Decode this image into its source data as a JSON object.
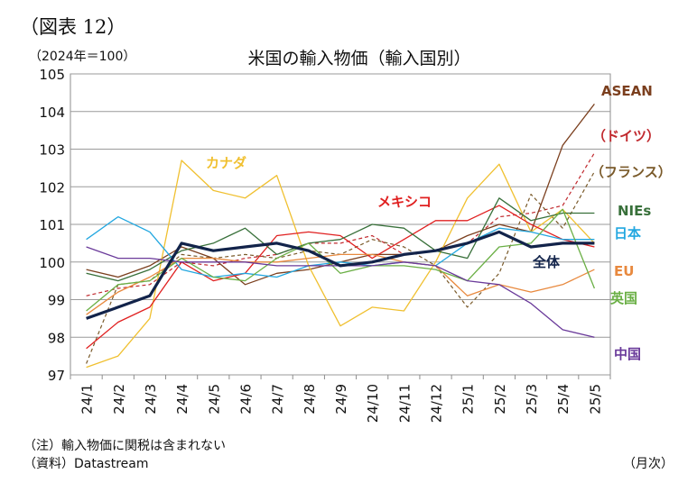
{
  "figure_no": "（図表 12）",
  "unit_label": "（2024年＝100）",
  "title": "米国の輸入物価（輸入国別）",
  "note": "（注）輸入物価に関税は含まれない",
  "source": "（資料）Datastream",
  "x_unit": "（月次）",
  "chart_data": {
    "type": "line",
    "title": "米国の輸入物価（輸入国別）",
    "ylabel": "（2024年＝100）",
    "xlabel": "（月次）",
    "ylim": [
      97,
      105
    ],
    "yticks": [
      97,
      98,
      99,
      100,
      101,
      102,
      103,
      104,
      105
    ],
    "grid": true,
    "categories": [
      "24/1",
      "24/2",
      "24/3",
      "24/4",
      "24/5",
      "24/6",
      "24/7",
      "24/8",
      "24/9",
      "24/10",
      "24/11",
      "24/12",
      "25/1",
      "25/2",
      "25/3",
      "25/4",
      "25/5"
    ],
    "series": [
      {
        "name": "ASEAN",
        "color": "#7b3f1e",
        "dash": false,
        "width": 1.3,
        "values": [
          99.8,
          99.6,
          99.9,
          100.4,
          100.1,
          99.4,
          99.7,
          99.8,
          100.0,
          100.2,
          100.2,
          100.3,
          100.7,
          101.0,
          100.8,
          103.1,
          104.2
        ]
      },
      {
        "name": "（ドイツ）",
        "color": "#c0282d",
        "dash": true,
        "width": 1.2,
        "values": [
          99.1,
          99.3,
          99.4,
          100.0,
          99.9,
          100.1,
          100.2,
          100.5,
          100.5,
          100.7,
          100.2,
          100.3,
          100.5,
          101.2,
          101.3,
          101.5,
          102.9
        ]
      },
      {
        "name": "（フランス）",
        "color": "#7a5a2a",
        "dash": true,
        "width": 1.2,
        "values": [
          97.3,
          99.4,
          99.5,
          100.2,
          100.1,
          100.2,
          100.1,
          100.3,
          100.2,
          100.6,
          100.4,
          99.9,
          98.8,
          99.7,
          101.8,
          100.9,
          102.4
        ]
      },
      {
        "name": "カナダ",
        "color": "#f0c030",
        "dash": false,
        "width": 1.3,
        "values": [
          97.2,
          97.5,
          98.5,
          102.7,
          101.9,
          101.7,
          102.3,
          99.9,
          98.3,
          98.8,
          98.7,
          100.0,
          101.7,
          102.6,
          100.8,
          101.4,
          100.5
        ]
      },
      {
        "name": "メキシコ",
        "color": "#e02020",
        "dash": false,
        "width": 1.3,
        "values": [
          97.7,
          98.4,
          98.8,
          100.0,
          99.5,
          99.7,
          100.7,
          100.8,
          100.7,
          100.1,
          100.6,
          101.1,
          101.1,
          101.5,
          101.0,
          100.6,
          100.4
        ]
      },
      {
        "name": "NIEs",
        "color": "#38703a",
        "dash": false,
        "width": 1.3,
        "values": [
          99.7,
          99.5,
          99.8,
          100.3,
          100.5,
          100.9,
          100.2,
          100.5,
          100.6,
          101.0,
          100.9,
          100.3,
          100.1,
          101.7,
          101.1,
          101.3,
          101.3
        ]
      },
      {
        "name": "日本",
        "color": "#22a7e0",
        "dash": false,
        "width": 1.3,
        "values": [
          100.6,
          101.2,
          100.8,
          99.8,
          99.6,
          99.7,
          99.6,
          99.9,
          100.0,
          99.9,
          100.0,
          99.9,
          100.5,
          100.9,
          100.8,
          100.6,
          100.6
        ]
      },
      {
        "name": "全体",
        "color": "#12234a",
        "dash": false,
        "width": 3.2,
        "values": [
          98.5,
          98.8,
          99.1,
          100.5,
          100.3,
          100.4,
          100.5,
          100.3,
          99.9,
          100.0,
          100.2,
          100.3,
          100.5,
          100.8,
          100.4,
          100.5,
          100.5
        ]
      },
      {
        "name": "EU",
        "color": "#e8893e",
        "dash": false,
        "width": 1.3,
        "values": [
          98.6,
          99.2,
          99.6,
          100.1,
          100.1,
          100.0,
          100.0,
          100.1,
          100.2,
          100.2,
          100.0,
          99.9,
          99.1,
          99.4,
          99.2,
          99.4,
          99.8
        ]
      },
      {
        "name": "英国",
        "color": "#6aaf45",
        "dash": false,
        "width": 1.3,
        "values": [
          98.7,
          99.4,
          99.5,
          100.1,
          99.6,
          99.5,
          100.1,
          100.5,
          99.7,
          99.9,
          99.9,
          99.8,
          99.5,
          100.4,
          100.5,
          101.4,
          99.3
        ]
      },
      {
        "name": "中国",
        "color": "#6a3a9a",
        "dash": false,
        "width": 1.3,
        "values": [
          100.4,
          100.1,
          100.1,
          100.0,
          100.0,
          100.0,
          99.9,
          99.9,
          99.9,
          99.9,
          100.0,
          99.9,
          99.5,
          99.4,
          98.9,
          98.2,
          98.0
        ]
      }
    ],
    "labels": [
      {
        "series": "ASEAN",
        "text": "ASEAN"
      },
      {
        "series": "（ドイツ）",
        "text": "（ドイツ）"
      },
      {
        "series": "（フランス）",
        "text": "（フランス）"
      },
      {
        "series": "カナダ",
        "text": "カナダ"
      },
      {
        "series": "メキシコ",
        "text": "メキシコ"
      },
      {
        "series": "NIEs",
        "text": "NIEs"
      },
      {
        "series": "日本",
        "text": "日本"
      },
      {
        "series": "全体",
        "text": "全体"
      },
      {
        "series": "EU",
        "text": "EU"
      },
      {
        "series": "英国",
        "text": "英国"
      },
      {
        "series": "中国",
        "text": "中国"
      }
    ]
  }
}
